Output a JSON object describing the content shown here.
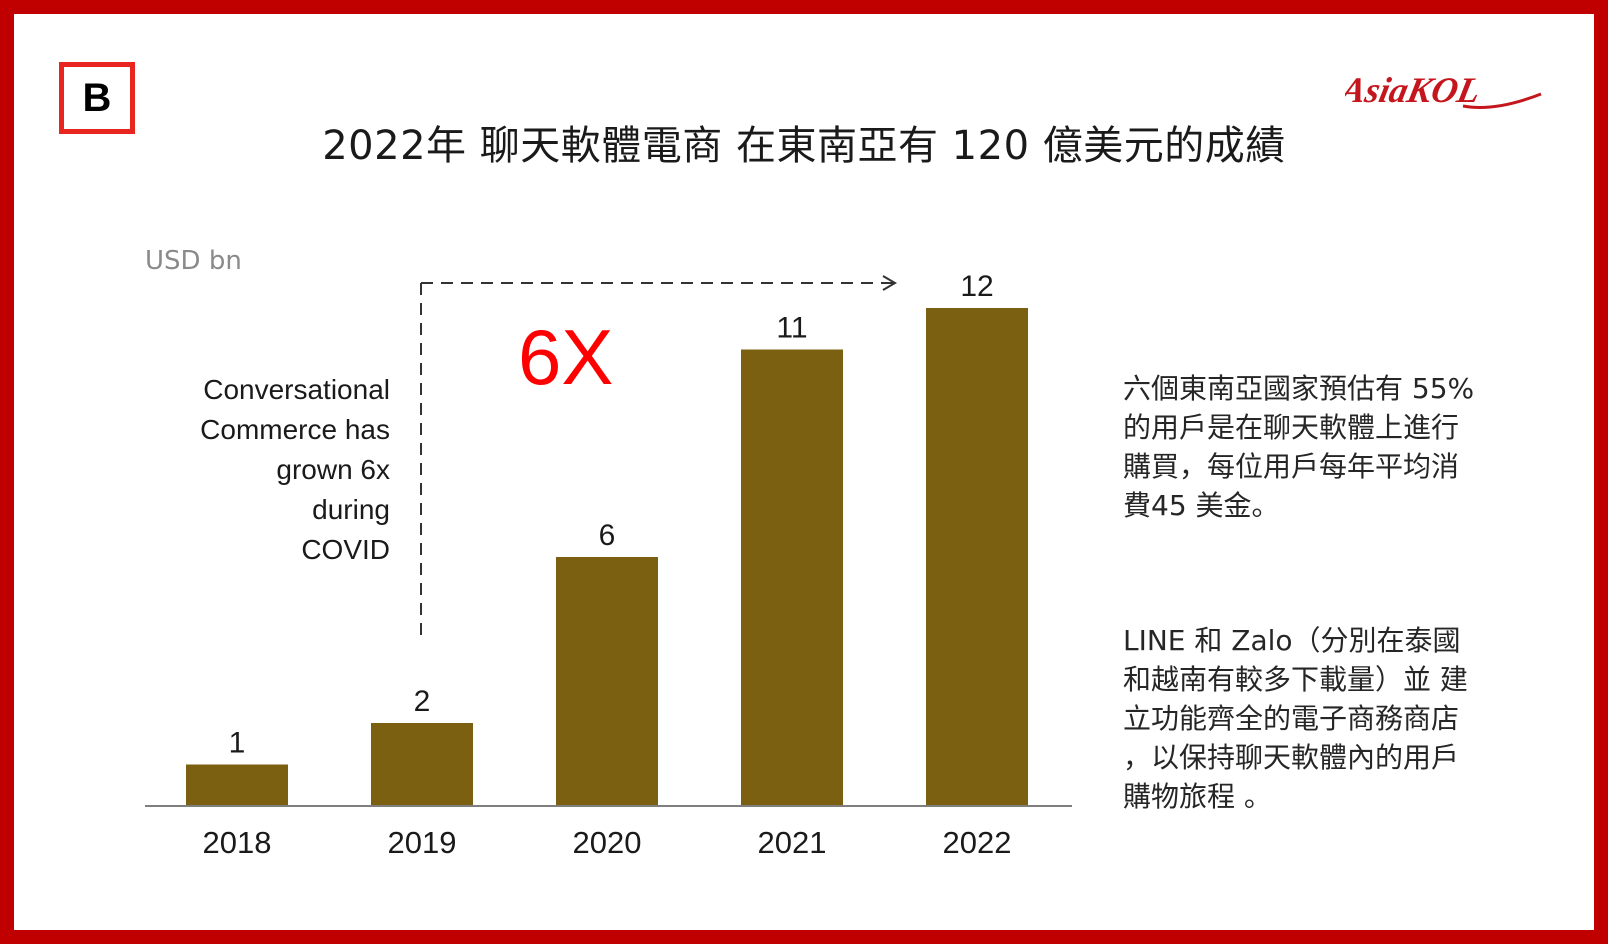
{
  "badge": "B",
  "logo_text": "AsiaKOL",
  "title": "2022年 聊天軟體電商 在東南亞有 120 億美元的成績",
  "colors": {
    "frame": "#c00000",
    "bar": "#7b6012",
    "growth_text": "#ff0000",
    "logo": "#c4161c"
  },
  "chart_data": {
    "type": "bar",
    "categories": [
      "2018",
      "2019",
      "2020",
      "2021",
      "2022"
    ],
    "values": [
      1,
      2,
      6,
      11,
      12
    ],
    "title": "",
    "xlabel": "",
    "ylabel": "USD bn",
    "ylim": [
      0,
      12
    ],
    "grid": false,
    "annotation": {
      "lines": [
        "Conversational",
        "Commerce has",
        "grown 6x",
        "during",
        "COVID"
      ],
      "growth_label": "6X"
    }
  },
  "side_text": {
    "paragraph1": [
      "六個東南亞國家預估有 55%",
      "的用戶是在聊天軟體上進行",
      "購買，每位用戶每年平均消",
      "費45 美金。"
    ],
    "paragraph2": [
      "LINE 和 Zalo（分別在泰國",
      "和越南有較多下載量）並 建",
      "立功能齊全的電子商務商店",
      "，以保持聊天軟體內的用戶",
      "購物旅程 。"
    ]
  }
}
